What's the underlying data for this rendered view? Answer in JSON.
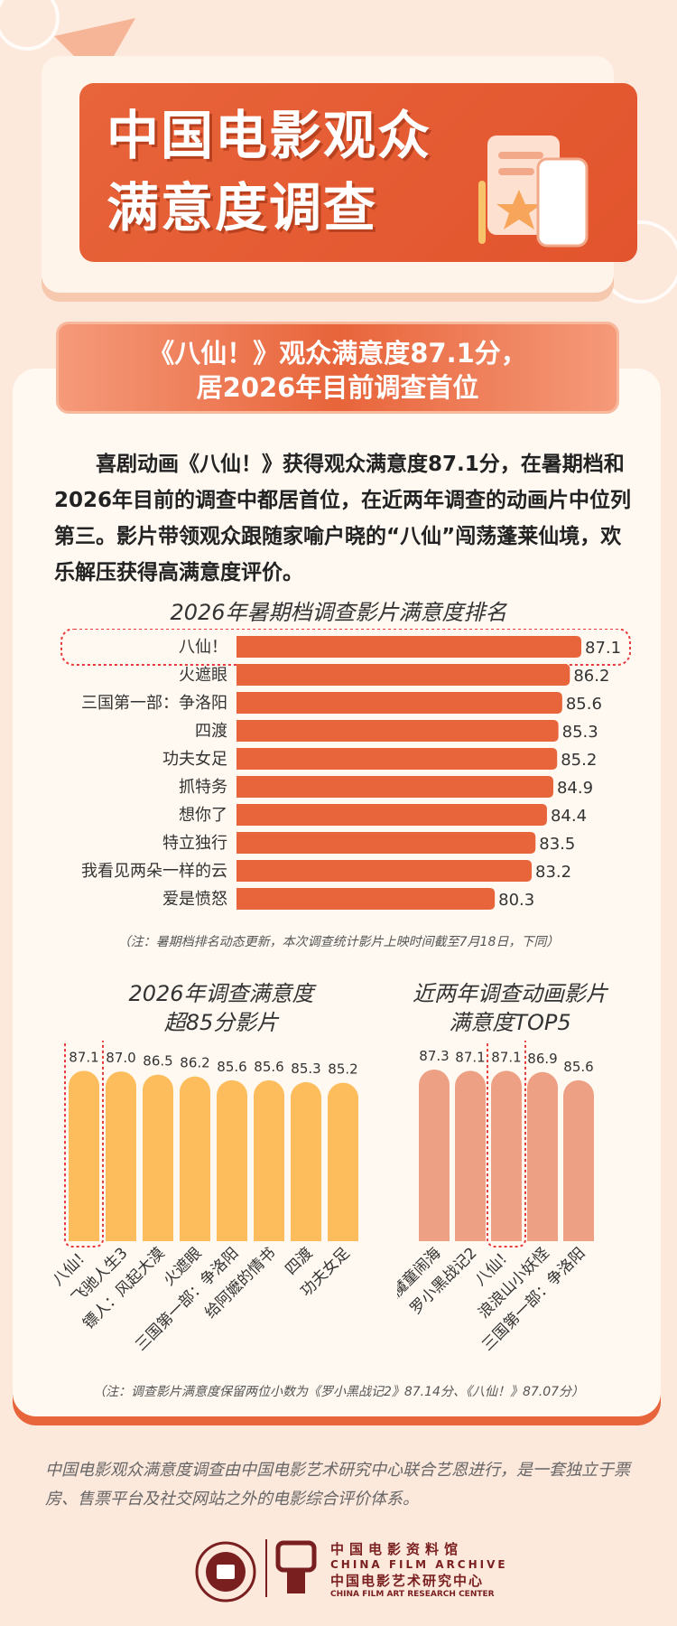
{
  "header": {
    "title_line1": "中国电影观众",
    "title_line2": "满意度调查"
  },
  "subtitle": {
    "line1": "《八仙！》观众满意度87.1分，",
    "line2": "居2026年目前调查首位"
  },
  "intro": "喜剧动画《八仙！》获得观众满意度87.1分，在暑期档和2026年目前的调查中都居首位，在近两年调查的动画片中位列第三。影片带领观众跟随家喻户晓的“八仙”闯荡蓬莱仙境，欢乐解压获得高满意度评价。",
  "colors": {
    "accent": "#e8643a",
    "yellow": "#fdbd5c",
    "salmon": "#eda083",
    "highlight": "#e83a3a"
  },
  "chart_data": [
    {
      "type": "bar",
      "orientation": "horizontal",
      "title": "2026年暑期档调查影片满意度排名",
      "categories": [
        "八仙！",
        "火遮眼",
        "三国第一部：争洛阳",
        "四渡",
        "功夫女足",
        "抓特务",
        "想你了",
        "特立独行",
        "我看见两朵一样的云",
        "爱是愤怒"
      ],
      "values": [
        87.1,
        86.2,
        85.6,
        85.3,
        85.2,
        84.9,
        84.4,
        83.5,
        83.2,
        80.3
      ],
      "highlight": "八仙！",
      "note": "（注：暑期档排名动态更新，本次调查统计影片上映时间截至7月18日，下同）"
    },
    {
      "type": "bar",
      "title_line1": "2026年调查满意度",
      "title_line2": "超85分影片",
      "categories": [
        "八仙！",
        "飞驰人生3",
        "镖人：风起大漠",
        "火遮眼",
        "三国第一部：争洛阳",
        "给阿嬷的情书",
        "四渡",
        "功夫女足"
      ],
      "values": [
        87.1,
        87.0,
        86.5,
        86.2,
        85.6,
        85.6,
        85.3,
        85.2
      ],
      "highlight": "八仙！"
    },
    {
      "type": "bar",
      "title_line1": "近两年调查动画影片",
      "title_line2": "满意度TOP5",
      "categories": [
        "哪吒之魔童闹海",
        "罗小黑战记2",
        "八仙！",
        "浪浪山小妖怪",
        "三国第一部：争洛阳"
      ],
      "values": [
        87.3,
        87.1,
        87.1,
        86.9,
        85.6
      ],
      "highlight": "八仙！",
      "note": "（注：调查影片满意度保留两位小数为《罗小黑战记2》87.14分、《八仙！》87.07分）"
    }
  ],
  "footer": {
    "description": "中国电影观众满意度调查由中国电影艺术研究中心联合艺恩进行，是一套独立于票房、售票平台及社交网站之外的电影综合评价体系。",
    "logo_cn": "中国电影资料馆",
    "logo_en": "CHINA FILM ARCHIVE",
    "logo_cn2": "中国电影艺术研究中心",
    "logo_en2": "CHINA FILM ART RESEARCH CENTER"
  }
}
